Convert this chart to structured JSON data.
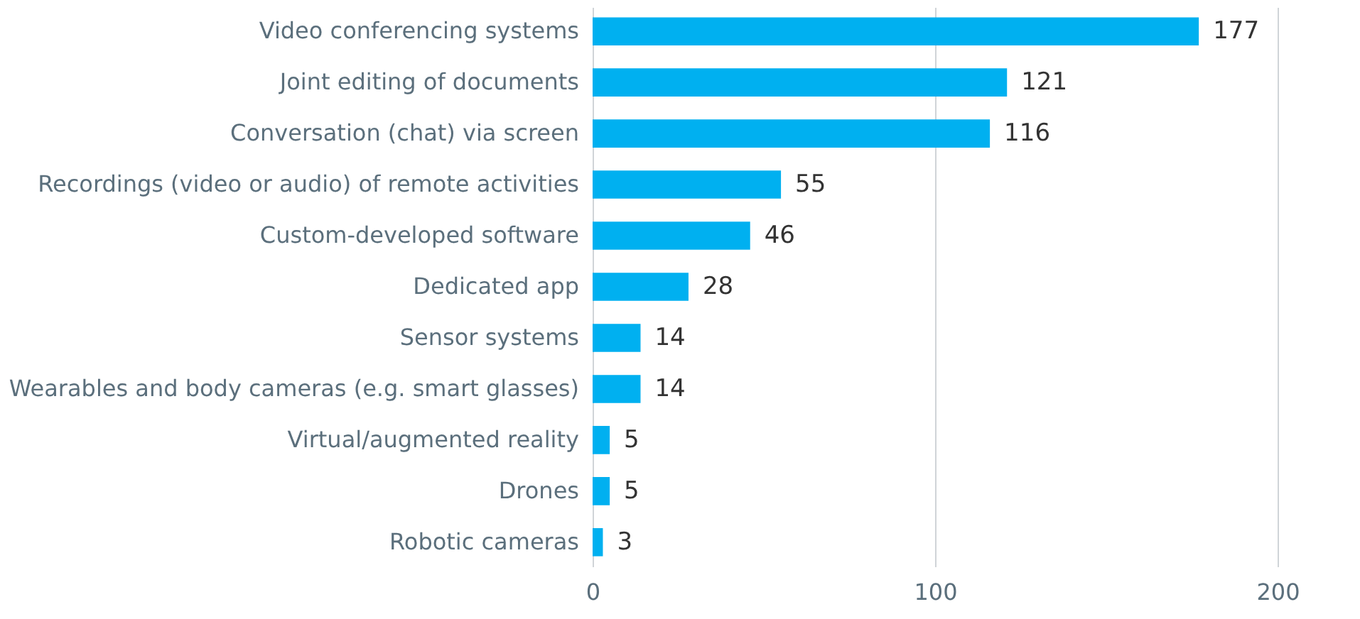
{
  "chart_data": {
    "type": "bar",
    "orientation": "horizontal",
    "categories": [
      "Video conferencing systems",
      "Joint editing of documents",
      "Conversation (chat) via screen",
      "Recordings (video or audio) of remote activities",
      "Custom-developed software",
      "Dedicated app",
      "Sensor systems",
      "Wearables and body cameras (e.g. smart glasses)",
      "Virtual/augmented reality",
      "Drones",
      "Robotic cameras"
    ],
    "values": [
      177,
      121,
      116,
      55,
      46,
      28,
      14,
      14,
      5,
      5,
      3
    ],
    "color": "#00b0f0",
    "xlim": [
      0,
      200
    ],
    "xticks": [
      0,
      100,
      200
    ],
    "grid": "x",
    "data_labels": true
  }
}
